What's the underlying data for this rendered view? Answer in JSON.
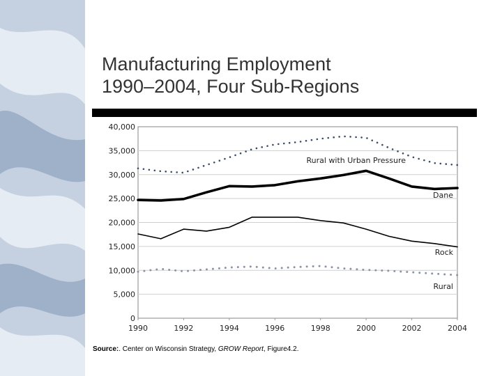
{
  "slide": {
    "title_line1": "Manufacturing Employment",
    "title_line2": "1990–2004, Four Sub-Regions"
  },
  "source": {
    "label": "Source:",
    "text_before": ". Center on Wisconsin Strategy, ",
    "report": "GROW Report",
    "text_after": ", Figure4.2."
  },
  "colors": {
    "background": "#ffffff",
    "title": "#333333",
    "rule": "#000000",
    "sidebar_base": "#c5d1e0",
    "sidebar_dark": "#9fb1c9",
    "sidebar_light": "#e6ecf3"
  },
  "chart_data": {
    "type": "line",
    "title": "",
    "xlabel": "",
    "ylabel": "",
    "x": [
      1990,
      1991,
      1992,
      1993,
      1994,
      1995,
      1996,
      1997,
      1998,
      1999,
      2000,
      2001,
      2002,
      2003,
      2004
    ],
    "xticks": [
      "1990",
      "1992",
      "1994",
      "1996",
      "1998",
      "2000",
      "2002",
      "2004"
    ],
    "yticks": [
      "0",
      "5,000",
      "10,000",
      "15,000",
      "20,000",
      "25,000",
      "30,000",
      "35,000",
      "40,000"
    ],
    "xlim": [
      1990,
      2004
    ],
    "ylim": [
      0,
      40000
    ],
    "grid": "horizontal",
    "series": [
      {
        "name": "Rural with Urban Pressure",
        "style": "dotted-dark",
        "values": [
          31300,
          30700,
          30400,
          32000,
          33600,
          35300,
          36300,
          36800,
          37500,
          38000,
          37700,
          35600,
          33700,
          32400,
          32000
        ]
      },
      {
        "name": "Dane",
        "style": "thick",
        "values": [
          24700,
          24600,
          24900,
          26300,
          27600,
          27500,
          27800,
          28600,
          29200,
          29900,
          30800,
          29200,
          27500,
          27000,
          27200
        ]
      },
      {
        "name": "Rock",
        "style": "thin",
        "values": [
          17600,
          16600,
          18600,
          18200,
          19000,
          21100,
          21100,
          21100,
          20400,
          19900,
          18600,
          17100,
          16100,
          15600,
          14900
        ]
      },
      {
        "name": "Rural",
        "style": "dotted-light",
        "values": [
          9700,
          10300,
          9800,
          10200,
          10600,
          10800,
          10400,
          10700,
          10900,
          10400,
          10100,
          9900,
          9600,
          9300,
          9000
        ]
      }
    ]
  }
}
